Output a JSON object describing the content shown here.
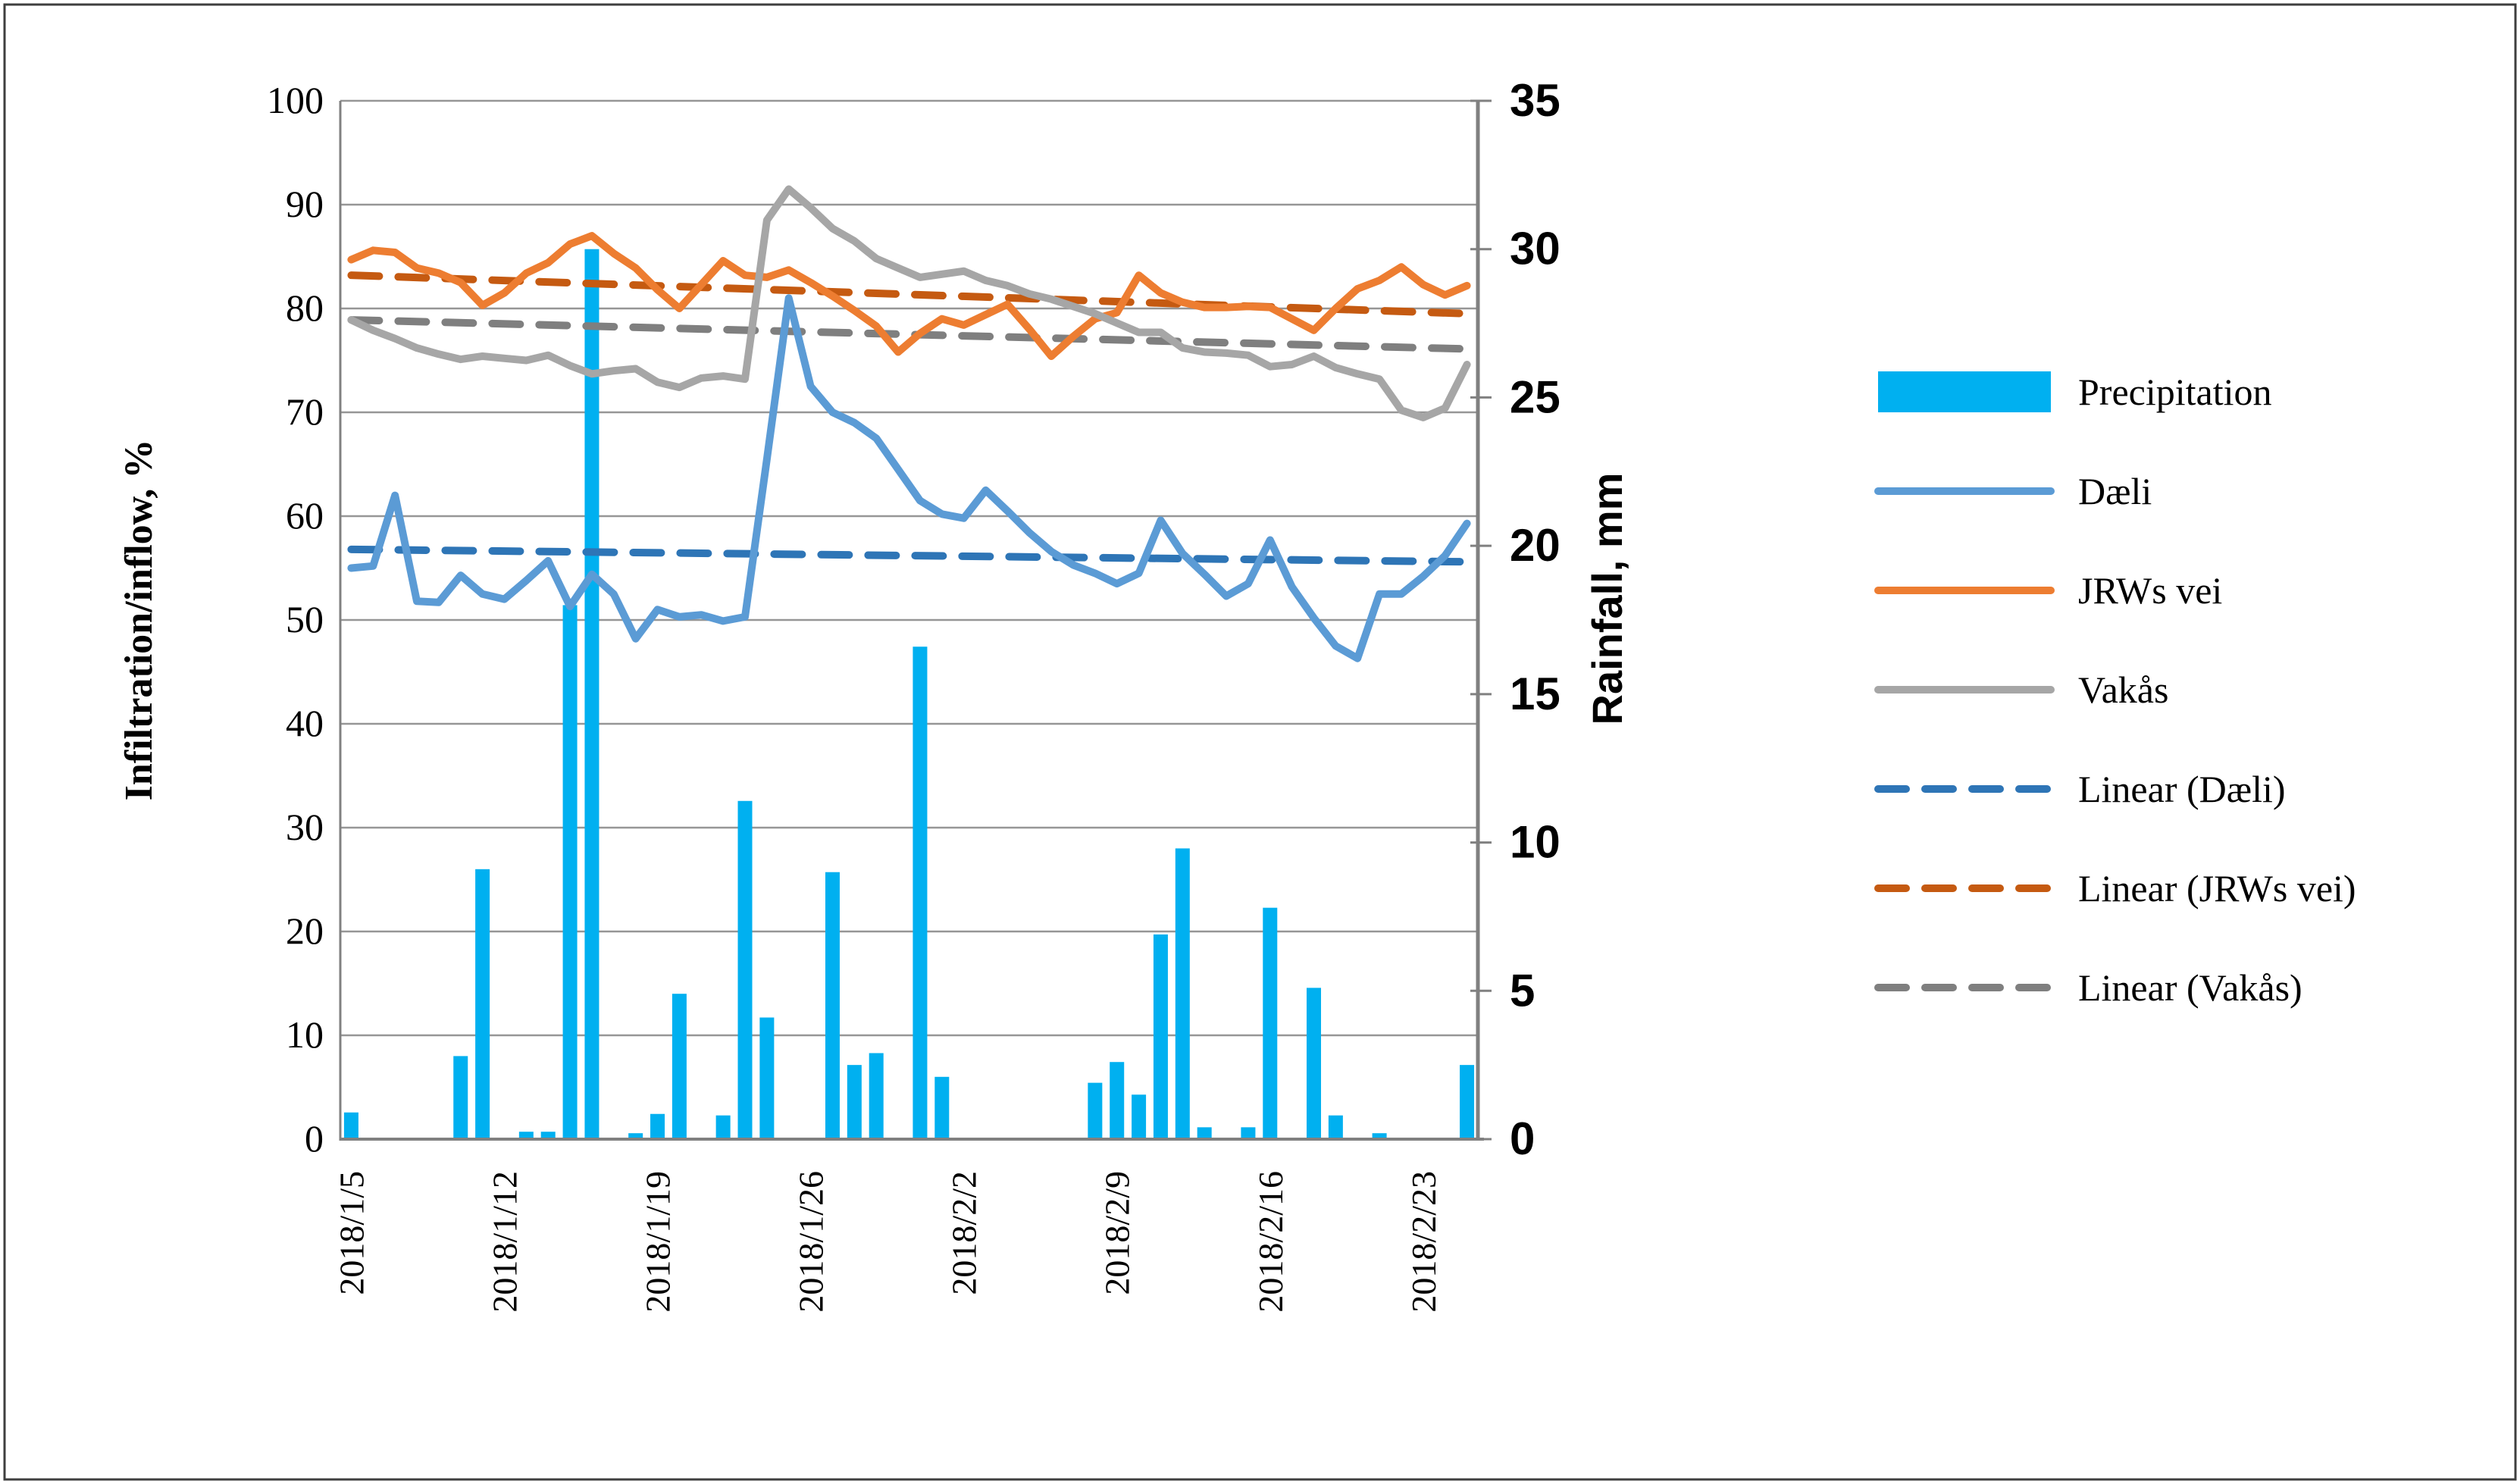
{
  "figure": {
    "border_color": "#3f3f3f",
    "background": "#ffffff"
  },
  "chart_data": {
    "type": "combo-bar-line",
    "title": "",
    "ylabel_left": "Infiltration/inflow, %",
    "ylabel_right": "Rainfall, mm",
    "xlabel": "",
    "ylim_left": [
      0,
      100
    ],
    "ylim_right": [
      0,
      35
    ],
    "left_ticks": [
      0,
      10,
      20,
      30,
      40,
      50,
      60,
      70,
      80,
      90,
      100
    ],
    "right_ticks": [
      0,
      5,
      10,
      15,
      20,
      25,
      30,
      35
    ],
    "grid": "horizontal-major",
    "legend_position": "right",
    "categories": [
      "2018/1/5",
      "2018/1/6",
      "2018/1/7",
      "2018/1/8",
      "2018/1/9",
      "2018/1/10",
      "2018/1/11",
      "2018/1/12",
      "2018/1/13",
      "2018/1/14",
      "2018/1/15",
      "2018/1/16",
      "2018/1/17",
      "2018/1/18",
      "2018/1/19",
      "2018/1/20",
      "2018/1/21",
      "2018/1/22",
      "2018/1/23",
      "2018/1/24",
      "2018/1/25",
      "2018/1/26",
      "2018/1/27",
      "2018/1/28",
      "2018/1/29",
      "2018/1/30",
      "2018/1/31",
      "2018/2/1",
      "2018/2/2",
      "2018/2/3",
      "2018/2/4",
      "2018/2/5",
      "2018/2/6",
      "2018/2/7",
      "2018/2/8",
      "2018/2/9",
      "2018/2/10",
      "2018/2/11",
      "2018/2/12",
      "2018/2/13",
      "2018/2/14",
      "2018/2/15",
      "2018/2/16",
      "2018/2/17",
      "2018/2/18",
      "2018/2/19",
      "2018/2/20",
      "2018/2/21",
      "2018/2/22",
      "2018/2/23",
      "2018/2/24",
      "2018/2/25"
    ],
    "x_tick_indices": [
      0,
      7,
      14,
      21,
      28,
      35,
      42,
      49
    ],
    "x_tick_labels": [
      "2018/1/5",
      "2018/1/12",
      "2018/1/19",
      "2018/1/26",
      "2018/2/2",
      "2018/2/9",
      "2018/2/16",
      "2018/2/23"
    ],
    "series": [
      {
        "name": "Precipitation",
        "type": "bar",
        "axis": "right",
        "unit": "mm",
        "color": "#00b0f0",
        "values": [
          0.9,
          0,
          0,
          0,
          0,
          2.8,
          9.1,
          0,
          0.25,
          0.25,
          18,
          30,
          0,
          0.2,
          0.85,
          4.9,
          0,
          0.8,
          11.4,
          4.1,
          0,
          0,
          9,
          2.5,
          2.9,
          0,
          16.6,
          2.1,
          0,
          0,
          0,
          0,
          0,
          0,
          1.9,
          2.6,
          1.5,
          6.9,
          9.8,
          0.4,
          0,
          0.4,
          7.8,
          0,
          5.1,
          0.8,
          0,
          0.2,
          0,
          0,
          0,
          2.5
        ]
      },
      {
        "name": "Dæli",
        "type": "line",
        "axis": "left",
        "unit": "%",
        "color": "#5b9bd5",
        "values": [
          55.0,
          55.2,
          62.0,
          51.8,
          51.7,
          54.3,
          52.5,
          52.0,
          53.8,
          55.7,
          51.3,
          54.4,
          52.5,
          48.2,
          51.0,
          50.3,
          50.5,
          49.9,
          50.3,
          65.5,
          81.0,
          72.5,
          70.0,
          69.0,
          67.5,
          64.5,
          61.5,
          60.2,
          59.8,
          62.5,
          60.5,
          58.4,
          56.6,
          55.3,
          54.5,
          53.5,
          54.5,
          59.6,
          56.4,
          54.4,
          52.3,
          53.5,
          57.7,
          53.2,
          50.2,
          47.5,
          46.3,
          52.5,
          52.5,
          54.2,
          56.2,
          59.3
        ]
      },
      {
        "name": "JRWs vei",
        "type": "line",
        "axis": "left",
        "unit": "%",
        "color": "#ed7d31",
        "values": [
          84.7,
          85.6,
          85.4,
          83.9,
          83.4,
          82.5,
          80.3,
          81.5,
          83.4,
          84.4,
          86.2,
          87.0,
          85.3,
          83.9,
          81.8,
          80.0,
          82.3,
          84.6,
          83.2,
          83.0,
          83.7,
          82.5,
          81.2,
          79.8,
          78.3,
          75.8,
          77.6,
          79.0,
          78.4,
          79.4,
          80.4,
          78.0,
          75.4,
          77.3,
          79.0,
          79.6,
          83.2,
          81.5,
          80.6,
          80.1,
          80.1,
          80.2,
          80.1,
          79.0,
          77.9,
          80.0,
          81.9,
          82.7,
          84.0,
          82.3,
          81.3,
          82.2
        ]
      },
      {
        "name": "Vakås",
        "type": "line",
        "axis": "left",
        "unit": "%",
        "color": "#a6a6a6",
        "values": [
          78.9,
          77.9,
          77.1,
          76.2,
          75.6,
          75.1,
          75.4,
          75.2,
          75.0,
          75.5,
          74.5,
          73.7,
          74.0,
          74.2,
          72.9,
          72.4,
          73.3,
          73.5,
          73.2,
          88.5,
          91.5,
          89.7,
          87.7,
          86.5,
          84.8,
          83.9,
          83.0,
          83.3,
          83.6,
          82.7,
          82.2,
          81.4,
          80.9,
          80.2,
          79.5,
          78.6,
          77.7,
          77.7,
          76.2,
          75.8,
          75.7,
          75.5,
          74.4,
          74.6,
          75.4,
          74.3,
          73.7,
          73.2,
          70.2,
          69.5,
          70.4,
          74.6
        ]
      },
      {
        "name": "Linear (Dæli)",
        "type": "trend",
        "axis": "left",
        "unit": "%",
        "color": "#2e75b6",
        "start": 56.8,
        "end": 55.6
      },
      {
        "name": "Linear (JRWs vei)",
        "type": "trend",
        "axis": "left",
        "unit": "%",
        "color": "#c55a11",
        "start": 83.2,
        "end": 79.5
      },
      {
        "name": "Linear (Vakås)",
        "type": "trend",
        "axis": "left",
        "unit": "%",
        "color": "#7f7f7f",
        "start": 78.9,
        "end": 76.1
      }
    ],
    "gridline_color": "#969696",
    "axis_line_color": "#808080"
  },
  "legend": {
    "items": [
      {
        "label": "Precipitation",
        "marker": "bar",
        "color": "#00b0f0"
      },
      {
        "label": "Dæli",
        "marker": "line",
        "color": "#5b9bd5"
      },
      {
        "label": "JRWs vei",
        "marker": "line",
        "color": "#ed7d31"
      },
      {
        "label": "Vakås",
        "marker": "line",
        "color": "#a6a6a6"
      },
      {
        "label": "Linear (Dæli)",
        "marker": "dash",
        "color": "#2e75b6"
      },
      {
        "label": "Linear (JRWs vei)",
        "marker": "dash",
        "color": "#c55a11"
      },
      {
        "label": "Linear (Vakås)",
        "marker": "dash",
        "color": "#7f7f7f"
      }
    ]
  }
}
